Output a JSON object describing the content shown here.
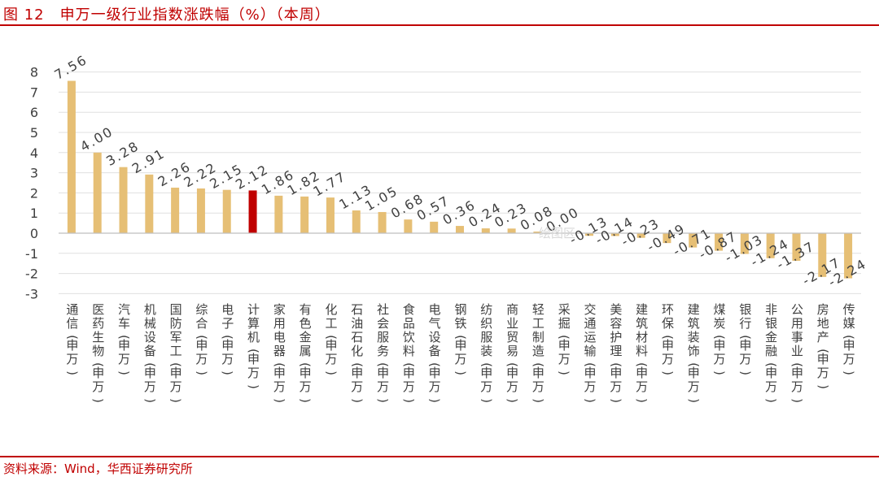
{
  "header": {
    "title": "图 12　申万一级行业指数涨跌幅（%）（本周）"
  },
  "footer": {
    "source": "资料来源：Wind，华西证券研究所"
  },
  "watermark": "绘图区",
  "colors": {
    "bar": "#E6BF75",
    "highlight": "#C00000",
    "axis": "#BFBFBF",
    "grid": "#E0E0E0",
    "text": "#404040",
    "accent": "#C00000"
  },
  "chart_data": {
    "type": "bar",
    "categories": [
      "通信(申万)",
      "医药生物(申万)",
      "汽车(申万)",
      "机械设备(申万)",
      "国防军工(申万)",
      "综合(申万)",
      "电子(申万)",
      "计算机(申万)",
      "家用电器(申万)",
      "有色金属(申万)",
      "化工(申万)",
      "石油石化(申万)",
      "社会服务(申万)",
      "食品饮料(申万)",
      "电气设备(申万)",
      "钢铁(申万)",
      "纺织服装(申万)",
      "商业贸易(申万)",
      "轻工制造(申万)",
      "采掘(申万)",
      "交通运输(申万)",
      "美容护理(申万)",
      "建筑材料(申万)",
      "环保(申万)",
      "建筑装饰(申万)",
      "煤炭(申万)",
      "银行(申万)",
      "非银金融(申万)",
      "公用事业(申万)",
      "房地产(申万)",
      "传媒(申万)"
    ],
    "values": [
      7.56,
      4.0,
      3.28,
      2.91,
      2.26,
      2.22,
      2.15,
      2.12,
      1.86,
      1.82,
      1.77,
      1.13,
      1.05,
      0.68,
      0.57,
      0.36,
      0.24,
      0.23,
      0.08,
      0.0,
      -0.13,
      -0.14,
      -0.23,
      -0.49,
      -0.71,
      -0.87,
      -1.03,
      -1.24,
      -1.37,
      -2.17,
      -2.24
    ],
    "value_labels": [
      "7.56",
      "4.00",
      "3.28",
      "2.91",
      "2.26",
      "2.22",
      "2.15",
      "2.12",
      "1.86",
      "1.82",
      "1.77",
      "1.13",
      "1.05",
      "0.68",
      "0.57",
      "0.36",
      "0.24",
      "0.23",
      "0.08",
      "0.00",
      "-0.13",
      "-0.14",
      "-0.23",
      "-0.49",
      "-0.71",
      "-0.87",
      "-1.03",
      "-1.24",
      "-1.37",
      "-2.17",
      "-2.24"
    ],
    "highlight_category": "计算机(申万)",
    "ylim": [
      -3,
      8
    ],
    "yticks": [
      -3,
      -2,
      -1,
      0,
      1,
      2,
      3,
      4,
      5,
      6,
      7,
      8
    ],
    "grid": true,
    "title": "",
    "xlabel": "",
    "ylabel": ""
  }
}
